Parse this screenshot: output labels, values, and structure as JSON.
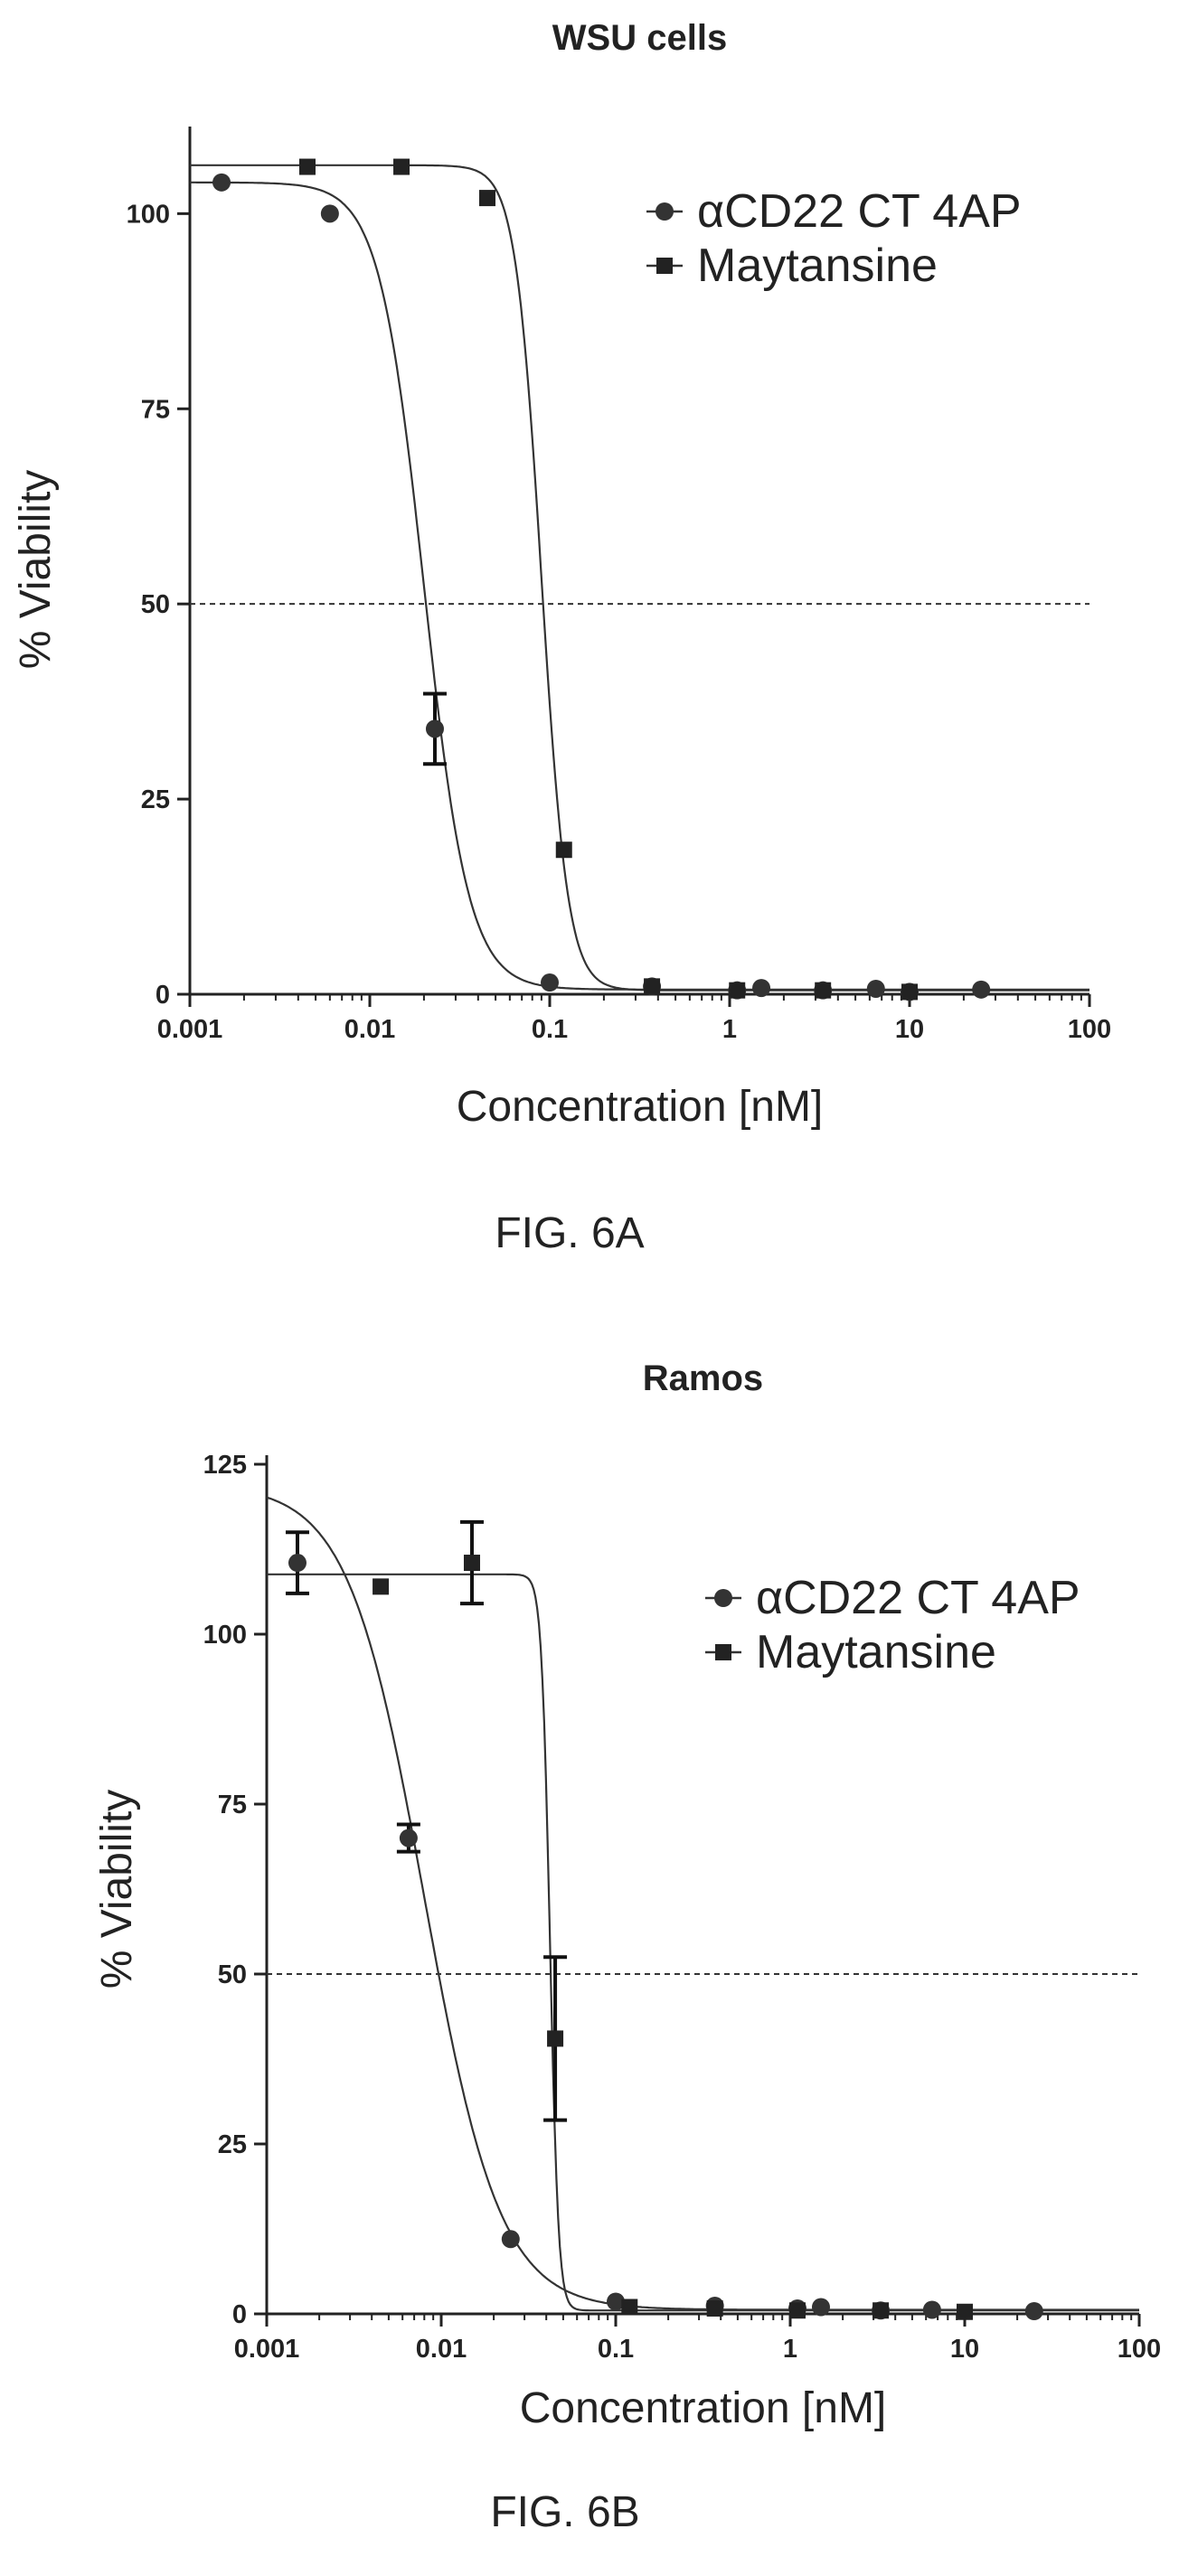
{
  "captions": [
    "FIG. 6A",
    "FIG. 6B"
  ],
  "chart_data": [
    {
      "type": "scatter",
      "title": "WSU cells",
      "xlabel": "Concentration [nM]",
      "ylabel": "% Viability",
      "xscale": "log",
      "xlim": [
        0.001,
        100
      ],
      "ylim": [
        0,
        110
      ],
      "xticks": [
        0.001,
        0.01,
        0.1,
        1,
        10,
        100
      ],
      "xtick_labels": [
        "0.001",
        "0.01",
        "0.1",
        "1",
        "10",
        "100"
      ],
      "yticks": [
        0,
        25,
        50,
        75,
        100
      ],
      "ytick_labels": [
        "0",
        "25",
        "50",
        "75",
        "100"
      ],
      "reference_line": {
        "y": 50,
        "style": "dashed"
      },
      "legend": {
        "position": "top-right"
      },
      "series": [
        {
          "name": "αCD22 CT 4AP",
          "marker": "circle",
          "x": [
            0.0015,
            0.006,
            0.023,
            0.1,
            0.37,
            1.1,
            1.5,
            3.3,
            6.5,
            10,
            25
          ],
          "y": [
            104,
            100,
            34,
            1.5,
            1,
            0.5,
            0.8,
            0.5,
            0.7,
            0.3,
            0.6
          ],
          "yerr": [
            0,
            0,
            4.5,
            0,
            0,
            0,
            0,
            0,
            0,
            0,
            0
          ],
          "fit": {
            "top": 104,
            "bottom": 0.6,
            "ic50": 0.02,
            "hill": 3.5
          }
        },
        {
          "name": "Maytansine",
          "marker": "square",
          "x": [
            0.0045,
            0.015,
            0.045,
            0.12,
            0.37,
            1.1,
            3.3,
            10
          ],
          "y": [
            106,
            106,
            102,
            18.5,
            1,
            0.5,
            0.5,
            0.3
          ],
          "yerr": [
            0,
            0,
            0,
            0,
            0,
            0,
            0,
            0
          ],
          "fit": {
            "top": 106.2,
            "bottom": 0.5,
            "ic50": 0.09,
            "hill": 6
          }
        }
      ]
    },
    {
      "type": "scatter",
      "title": "Ramos",
      "xlabel": "Concentration [nM]",
      "ylabel": "% Viability",
      "xscale": "log",
      "xlim": [
        0.001,
        100
      ],
      "ylim": [
        0,
        125
      ],
      "xticks": [
        0.001,
        0.01,
        0.1,
        1,
        10,
        100
      ],
      "xtick_labels": [
        "0.001",
        "0.01",
        "0.1",
        "1",
        "10",
        "100"
      ],
      "yticks": [
        0,
        25,
        50,
        75,
        100,
        125
      ],
      "ytick_labels": [
        "0",
        "25",
        "50",
        "75",
        "100",
        "125"
      ],
      "reference_line": {
        "y": 50,
        "style": "dashed"
      },
      "legend": {
        "position": "top-right"
      },
      "series": [
        {
          "name": "αCD22 CT 4AP",
          "marker": "circle",
          "x": [
            0.0015,
            0.0065,
            0.025,
            0.1,
            0.37,
            1.1,
            1.5,
            3.3,
            6.5,
            25
          ],
          "y": [
            110.5,
            70,
            11,
            1.8,
            1.2,
            0.8,
            1,
            0.5,
            0.6,
            0.4
          ],
          "yerr": [
            4.5,
            2,
            0,
            0,
            0,
            0,
            0,
            0,
            0,
            0
          ],
          "fit": {
            "top": 122,
            "bottom": 0.6,
            "ic50": 0.008,
            "hill": 2
          }
        },
        {
          "name": "Maytansine",
          "marker": "square",
          "x": [
            0.0045,
            0.015,
            0.045,
            0.12,
            0.37,
            1.1,
            3.3,
            10
          ],
          "y": [
            107,
            110.5,
            40.5,
            1,
            0.8,
            0.5,
            0.5,
            0.3
          ],
          "yerr": [
            0,
            6,
            12,
            0,
            0,
            0,
            0,
            0
          ],
          "fit": {
            "top": 108.8,
            "bottom": 0.5,
            "ic50": 0.042,
            "hill": 18
          }
        }
      ]
    }
  ]
}
